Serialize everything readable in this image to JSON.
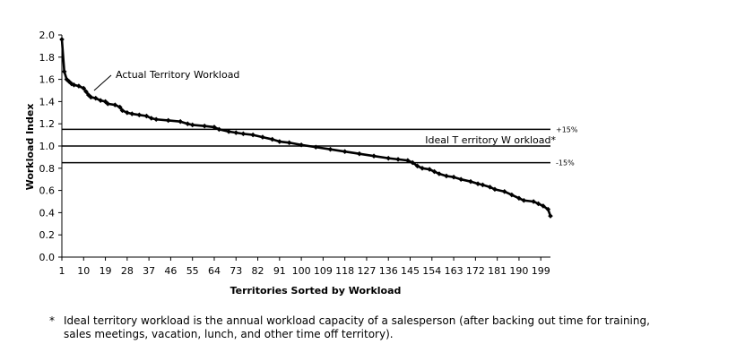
{
  "chart_data": {
    "type": "line",
    "xlabel": "Territories Sorted by Workload",
    "ylabel": "Workload Index",
    "ylim": [
      0,
      2.0
    ],
    "xlim": [
      1,
      203
    ],
    "y_ticks": [
      "0.0",
      "0.2",
      "0.4",
      "0.6",
      "0.8",
      "1.0",
      "1.2",
      "1.4",
      "1.6",
      "1.8",
      "2.0"
    ],
    "x_ticks": [
      "1",
      "10",
      "19",
      "28",
      "37",
      "46",
      "55",
      "64",
      "73",
      "82",
      "91",
      "100",
      "109",
      "118",
      "127",
      "136",
      "145",
      "154",
      "163",
      "172",
      "181",
      "190",
      "199"
    ],
    "grid": false,
    "markers": "diamond",
    "series": [
      {
        "name": "Actual Territory Workload",
        "points": [
          [
            1,
            1.96
          ],
          [
            2,
            1.67
          ],
          [
            3,
            1.6
          ],
          [
            4,
            1.58
          ],
          [
            5,
            1.56
          ],
          [
            6,
            1.55
          ],
          [
            8,
            1.54
          ],
          [
            10,
            1.52
          ],
          [
            11,
            1.49
          ],
          [
            12,
            1.46
          ],
          [
            13,
            1.44
          ],
          [
            15,
            1.43
          ],
          [
            17,
            1.41
          ],
          [
            19,
            1.4
          ],
          [
            20,
            1.38
          ],
          [
            23,
            1.37
          ],
          [
            25,
            1.35
          ],
          [
            26,
            1.32
          ],
          [
            28,
            1.3
          ],
          [
            30,
            1.29
          ],
          [
            33,
            1.28
          ],
          [
            36,
            1.27
          ],
          [
            38,
            1.25
          ],
          [
            40,
            1.24
          ],
          [
            45,
            1.23
          ],
          [
            50,
            1.22
          ],
          [
            53,
            1.2
          ],
          [
            55,
            1.19
          ],
          [
            60,
            1.18
          ],
          [
            64,
            1.17
          ],
          [
            66,
            1.15
          ],
          [
            70,
            1.13
          ],
          [
            73,
            1.12
          ],
          [
            76,
            1.11
          ],
          [
            80,
            1.1
          ],
          [
            84,
            1.08
          ],
          [
            88,
            1.06
          ],
          [
            91,
            1.04
          ],
          [
            95,
            1.03
          ],
          [
            100,
            1.01
          ],
          [
            106,
            0.99
          ],
          [
            112,
            0.97
          ],
          [
            118,
            0.95
          ],
          [
            124,
            0.93
          ],
          [
            130,
            0.91
          ],
          [
            136,
            0.89
          ],
          [
            140,
            0.88
          ],
          [
            144,
            0.87
          ],
          [
            146,
            0.85
          ],
          [
            148,
            0.82
          ],
          [
            150,
            0.8
          ],
          [
            153,
            0.79
          ],
          [
            155,
            0.77
          ],
          [
            157,
            0.75
          ],
          [
            160,
            0.73
          ],
          [
            163,
            0.72
          ],
          [
            166,
            0.7
          ],
          [
            170,
            0.68
          ],
          [
            173,
            0.66
          ],
          [
            175,
            0.65
          ],
          [
            178,
            0.63
          ],
          [
            180,
            0.61
          ],
          [
            184,
            0.59
          ],
          [
            187,
            0.56
          ],
          [
            190,
            0.53
          ],
          [
            192,
            0.51
          ],
          [
            196,
            0.5
          ],
          [
            198,
            0.48
          ],
          [
            200,
            0.46
          ],
          [
            202,
            0.43
          ],
          [
            203,
            0.37
          ]
        ]
      }
    ],
    "reference_lines": [
      {
        "y": 1.15,
        "label": "+15%"
      },
      {
        "y": 1.0,
        "label": "Ideal T erritory W orkload*"
      },
      {
        "y": 0.85,
        "label": "-15%"
      }
    ],
    "annotation": "Actual Territory Workload"
  },
  "footnote": {
    "marker": "*",
    "line1": "Ideal territory workload is the annual workload capacity of a salesperson (after backing out time for training,",
    "line2": "sales meetings, vacation, lunch, and other time off territory)."
  }
}
